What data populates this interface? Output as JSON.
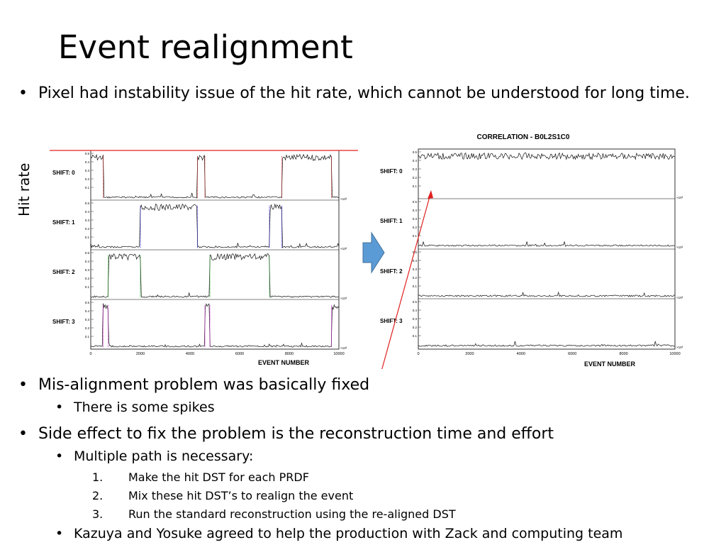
{
  "slide": {
    "title": "Event realignment",
    "bullet1": {
      "text": "Pixel had instability issue of the hit rate, which cannot be understood for long time."
    },
    "figure": {
      "y_axis_label": "Hit rate",
      "right_title": "CORRELATION - B0L2S1C0",
      "shift_labels": [
        "SHIFT: 0",
        "SHIFT: 1",
        "SHIFT: 2",
        "SHIFT: 3"
      ],
      "x_axis_label": "EVENT NUMBER",
      "x_ticks": [
        "0",
        "2000",
        "4000",
        "6000",
        "8000",
        "10000"
      ],
      "y_ticks": [
        "0.5",
        "0.4",
        "0.3",
        "0.2",
        "0.1"
      ],
      "scale_label": "×10³",
      "arrow_color": "#5b9bd5",
      "line_color": "#e02020"
    },
    "bullets": [
      {
        "text": "Mis-alignment problem was basically fixed",
        "level": 1
      },
      {
        "text": "There is some spikes",
        "level": 2
      },
      {
        "text": "Side effect to fix the problem is the reconstruction time and effort",
        "level": 1
      },
      {
        "text": "Multiple path is necessary:",
        "level": 2
      },
      {
        "num": "1.",
        "text": "Make the hit DST for each PRDF",
        "level": 3
      },
      {
        "num": "2.",
        "text": "Mix these hit DST’s to realign the event",
        "level": 3
      },
      {
        "num": "3.",
        "text": "Run the standard reconstruction using the re-aligned DST",
        "level": 3
      },
      {
        "text": "Kazuya and Yosuke agreed to help the production with Zack and computing team",
        "level": 2
      }
    ]
  }
}
